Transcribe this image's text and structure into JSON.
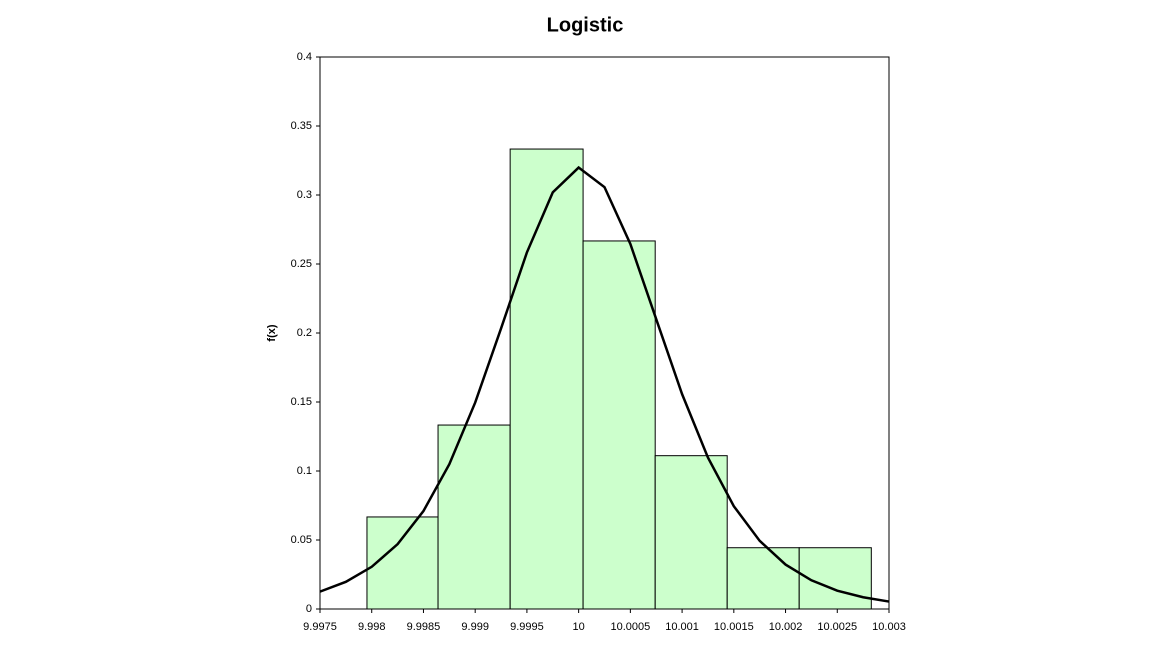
{
  "chart_data": {
    "type": "histogram",
    "title": "Logistic",
    "ylabel": "f(x)",
    "bins": [
      9.997954,
      9.998641,
      9.999338,
      10.000043,
      10.00074,
      10.001436,
      10.002132,
      10.002829
    ],
    "values": [
      0.0667,
      0.1333,
      0.3333,
      0.2667,
      0.1111,
      0.0444,
      0.0444
    ],
    "color": "#ccffcc",
    "curve": {
      "color": "#000000",
      "x": [
        9.9975,
        9.99775,
        9.998,
        9.99825,
        9.9985,
        9.99875,
        9.999,
        9.99925,
        9.9995,
        9.99975,
        10,
        10.00025,
        10.0005,
        10.00075,
        10.001,
        10.00125,
        10.0015,
        10.00175,
        10.002,
        10.00225,
        10.0025,
        10.00275,
        10.003
      ],
      "y": [
        0.0126,
        0.0197,
        0.0306,
        0.047,
        0.071,
        0.1049,
        0.1496,
        0.2033,
        0.2584,
        0.3019,
        0.3199,
        0.3057,
        0.2645,
        0.21,
        0.1557,
        0.1097,
        0.0745,
        0.0494,
        0.0322,
        0.0208,
        0.0133,
        0.0085,
        0.0054
      ]
    },
    "xlim": [
      9.9975,
      10.003
    ],
    "xticks": [
      9.9975,
      9.998,
      9.9985,
      9.999,
      9.9995,
      10,
      10.0005,
      10.001,
      10.0015,
      10.002,
      10.0025,
      10.003
    ],
    "ylim": [
      0,
      0.4
    ],
    "yticks": [
      0,
      0.05,
      0.1,
      0.15,
      0.2,
      0.25,
      0.3,
      0.35,
      0.4
    ]
  }
}
